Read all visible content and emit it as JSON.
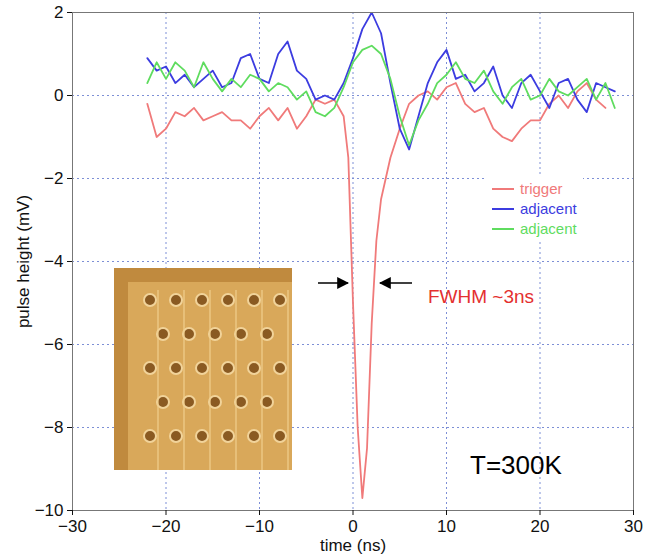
{
  "chart_data": {
    "type": "line",
    "x_label": "time (ns)",
    "y_label": "pulse height (mV)",
    "xlim": [
      -30,
      30
    ],
    "xticks": [
      -30,
      -20,
      -10,
      0,
      10,
      20,
      30
    ],
    "ylim": [
      -10,
      2
    ],
    "yticks": [
      -10,
      -8,
      -6,
      -4,
      -2,
      0,
      2
    ],
    "grid": true,
    "legend": "right",
    "annotations": [
      "FWHM ~3ns",
      "T=300K"
    ],
    "series": [
      {
        "name": "trigger",
        "color": "#f07a7a",
        "x": [
          -22,
          -21,
          -20,
          -19,
          -18,
          -17,
          -16,
          -15,
          -14,
          -13,
          -12,
          -11,
          -10,
          -9,
          -8,
          -7,
          -6,
          -5,
          -4,
          -3,
          -2,
          -1,
          -0.5,
          0,
          0.5,
          1,
          1.5,
          2,
          2.5,
          3,
          3.5,
          4,
          5,
          6,
          7,
          8,
          9,
          10,
          11,
          12,
          13,
          14,
          15,
          16,
          17,
          18,
          19,
          20,
          21,
          22,
          23,
          24,
          25,
          26,
          27
        ],
        "values": [
          -0.2,
          -1.0,
          -0.8,
          -0.4,
          -0.5,
          -0.3,
          -0.6,
          -0.5,
          -0.4,
          -0.6,
          -0.6,
          -0.8,
          -0.5,
          -0.3,
          -0.6,
          -0.3,
          -0.8,
          -0.5,
          -0.1,
          -0.2,
          -0.1,
          -0.5,
          -1.5,
          -5,
          -8,
          -9.7,
          -8.5,
          -5.5,
          -3.5,
          -2.5,
          -2.0,
          -1.5,
          -0.8,
          -0.2,
          0.0,
          0.1,
          -0.1,
          0.2,
          0.3,
          -0.2,
          -0.4,
          -0.3,
          -0.8,
          -1.0,
          -1.1,
          -0.8,
          -0.6,
          -0.6,
          -0.2,
          0.0,
          -0.3,
          0.1,
          0.3,
          -0.1,
          -0.3
        ]
      },
      {
        "name": "adjacent",
        "color": "#3c3ce0",
        "x": [
          -22,
          -21,
          -20,
          -19,
          -18,
          -17,
          -16,
          -15,
          -14,
          -13,
          -12,
          -11,
          -10,
          -9,
          -8,
          -7,
          -6,
          -5,
          -4,
          -3,
          -2,
          -1,
          0,
          1,
          2,
          3,
          4,
          5,
          6,
          7,
          8,
          9,
          10,
          11,
          12,
          13,
          14,
          15,
          16,
          17,
          18,
          19,
          20,
          21,
          22,
          23,
          24,
          25,
          26,
          27,
          28
        ],
        "values": [
          0.9,
          0.6,
          0.7,
          0.3,
          0.5,
          0.2,
          0.4,
          0.6,
          0.2,
          0.3,
          0.9,
          1.0,
          0.4,
          0.3,
          1.0,
          1.3,
          0.6,
          0.4,
          -0.1,
          0.0,
          -0.1,
          0.3,
          0.9,
          1.6,
          2.0,
          1.5,
          0.3,
          -0.8,
          -1.3,
          -0.5,
          0.3,
          0.8,
          1.1,
          0.4,
          0.5,
          0.1,
          0.3,
          0.7,
          0.0,
          -0.3,
          0.3,
          0.5,
          0.1,
          -0.3,
          0.3,
          0.4,
          -0.1,
          -0.4,
          0.3,
          0.2,
          0.1
        ]
      },
      {
        "name": "adjacent",
        "color": "#5fdc5f",
        "x": [
          -22,
          -21,
          -20,
          -19,
          -18,
          -17,
          -16,
          -15,
          -14,
          -13,
          -12,
          -11,
          -10,
          -9,
          -8,
          -7,
          -6,
          -5,
          -4,
          -3,
          -2,
          -1,
          0,
          1,
          2,
          3,
          4,
          5,
          6,
          7,
          8,
          9,
          10,
          11,
          12,
          13,
          14,
          15,
          16,
          17,
          18,
          19,
          20,
          21,
          22,
          23,
          24,
          25,
          26,
          27,
          28
        ],
        "values": [
          0.3,
          0.8,
          0.4,
          0.8,
          0.6,
          0.2,
          0.8,
          0.4,
          0.1,
          0.4,
          0.2,
          0.5,
          0.4,
          0.1,
          0.3,
          0.2,
          -0.1,
          0.1,
          -0.4,
          -0.5,
          -0.3,
          0.2,
          0.8,
          1.1,
          1.2,
          1.0,
          0.4,
          -0.5,
          -1.2,
          -0.6,
          -0.2,
          0.3,
          0.5,
          0.8,
          0.4,
          0.3,
          0.6,
          0.1,
          -0.2,
          0.2,
          0.4,
          -0.1,
          0.0,
          0.4,
          0.1,
          0.0,
          0.2,
          0.4,
          -0.1,
          0.3,
          -0.3
        ]
      }
    ]
  }
}
